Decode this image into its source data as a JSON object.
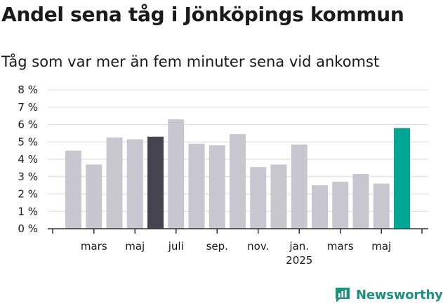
{
  "title": "Andel sena tåg i Jönköpings kommun",
  "subtitle": "Tåg som var mer än fem minuter sena vid ankomst",
  "brand": "Newsworthy",
  "colors": {
    "default_bar": "#c8c6cf",
    "highlight_dark": "#45434f",
    "highlight_teal": "#00a693",
    "grid": "#d9d9d9",
    "axis": "#333333",
    "brand": "#1f8f7e"
  },
  "chart_data": {
    "type": "bar",
    "ylabel": "",
    "xlabel": "",
    "ylim": [
      0,
      8
    ],
    "y_ticks": [
      "0 %",
      "1 %",
      "2 %",
      "3 %",
      "4 %",
      "5 %",
      "6 %",
      "7 %",
      "8 %"
    ],
    "x_tick_labels": [
      {
        "bar": 1,
        "line1": "mars",
        "line2": ""
      },
      {
        "bar": 3,
        "line1": "maj",
        "line2": ""
      },
      {
        "bar": 5,
        "line1": "juli",
        "line2": ""
      },
      {
        "bar": 7,
        "line1": "sep.",
        "line2": ""
      },
      {
        "bar": 9,
        "line1": "nov.",
        "line2": ""
      },
      {
        "bar": 11,
        "line1": "jan.",
        "line2": "2025"
      },
      {
        "bar": 13,
        "line1": "mars",
        "line2": ""
      },
      {
        "bar": 15,
        "line1": "maj",
        "line2": ""
      }
    ],
    "values": [
      4.5,
      3.7,
      5.25,
      5.15,
      5.3,
      6.3,
      4.9,
      4.8,
      5.45,
      3.55,
      3.7,
      4.85,
      2.5,
      2.7,
      3.15,
      2.6,
      5.8
    ],
    "highlights": {
      "4": "highlight_dark",
      "16": "highlight_teal"
    },
    "grid": true,
    "legend": "none"
  }
}
